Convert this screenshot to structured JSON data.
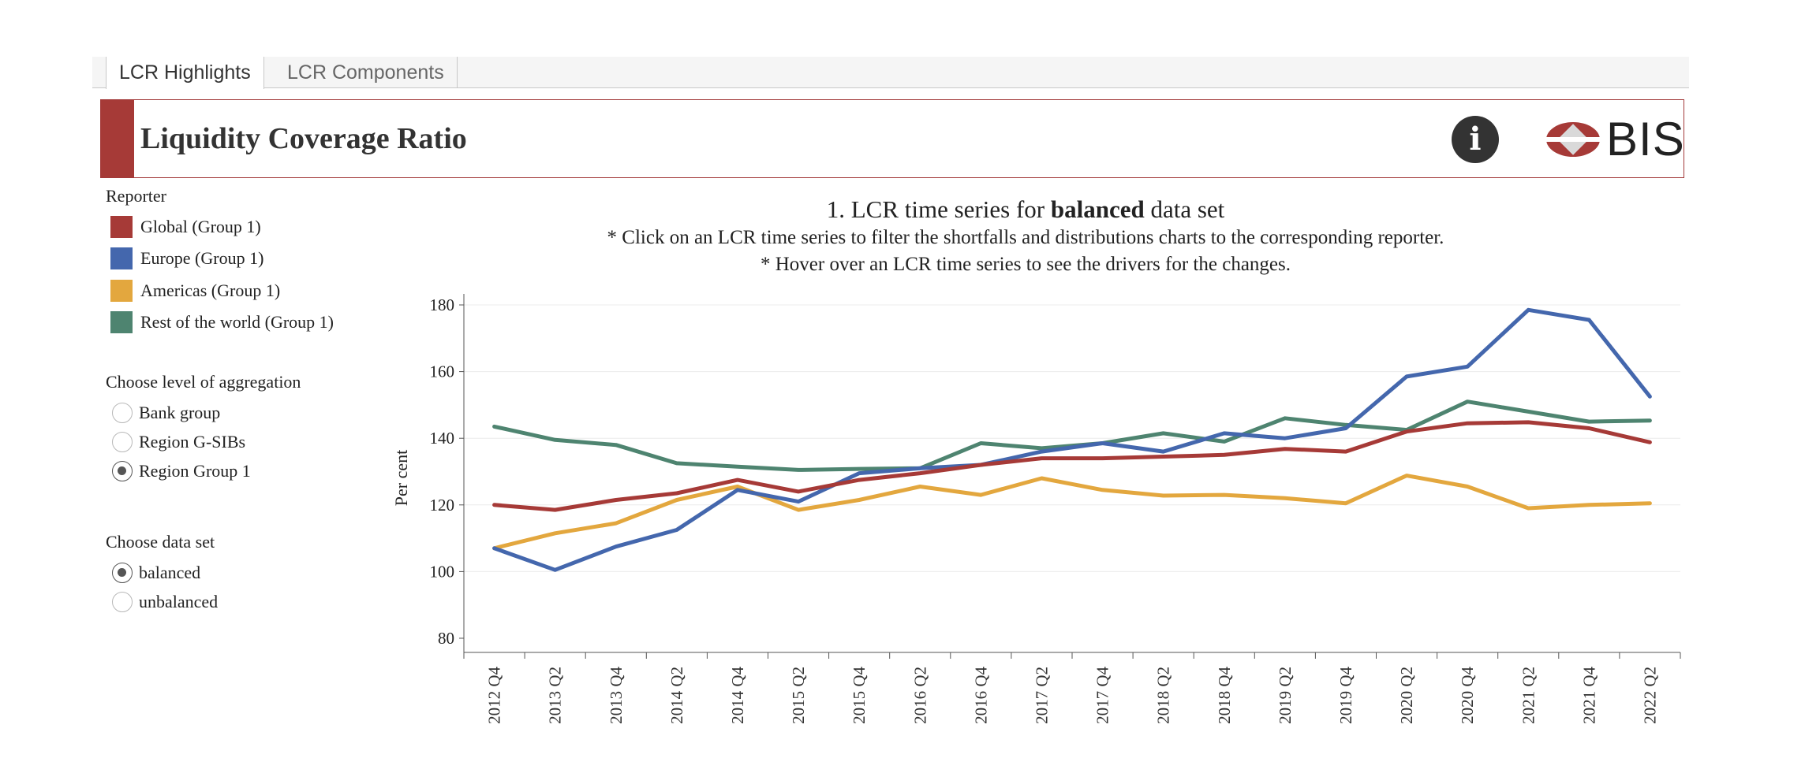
{
  "tabs": [
    {
      "label": "LCR Highlights",
      "active": true
    },
    {
      "label": "LCR Components",
      "active": false
    }
  ],
  "header": {
    "title": "Liquidity Coverage Ratio",
    "info_icon": "info-icon",
    "logo_text": "BIS",
    "accent_color": "#a63a37"
  },
  "reporter": {
    "label": "Reporter",
    "items": [
      {
        "label": "Global (Group 1)",
        "color": "#a63a37"
      },
      {
        "label": "Europe (Group 1)",
        "color": "#4467ad"
      },
      {
        "label": "Americas (Group 1)",
        "color": "#e3a73e"
      },
      {
        "label": "Rest of the world (Group 1)",
        "color": "#4e8470"
      }
    ]
  },
  "aggregation": {
    "label": "Choose level of aggregation",
    "options": [
      {
        "label": "Bank group",
        "checked": false
      },
      {
        "label": "Region G-SIBs",
        "checked": false
      },
      {
        "label": "Region Group 1",
        "checked": true
      }
    ]
  },
  "dataset": {
    "label": "Choose data set",
    "options": [
      {
        "label": "balanced",
        "checked": true
      },
      {
        "label": "unbalanced",
        "checked": false
      }
    ]
  },
  "chart_title": {
    "prefix": "1. LCR time series for ",
    "bold": "balanced",
    "suffix": " data set",
    "note1": "* Click on an LCR time series to filter the shortfalls and distributions charts to the corresponding reporter.",
    "note2": "* Hover over an LCR time series to see the drivers for the changes."
  },
  "chart_data": {
    "type": "line",
    "ylabel": "Per cent",
    "xlabel": "",
    "ylim": [
      80,
      180
    ],
    "yticks": [
      80,
      100,
      120,
      140,
      160,
      180
    ],
    "grid": true,
    "categories": [
      "2012 Q4",
      "2013 Q2",
      "2013 Q4",
      "2014 Q2",
      "2014 Q4",
      "2015 Q2",
      "2015 Q4",
      "2016 Q2",
      "2016 Q4",
      "2017 Q2",
      "2017 Q4",
      "2018 Q2",
      "2018 Q4",
      "2019 Q2",
      "2019 Q4",
      "2020 Q2",
      "2020 Q4",
      "2021 Q2",
      "2021 Q4",
      "2022 Q2"
    ],
    "series": [
      {
        "name": "Rest of the world (Group 1)",
        "color": "#4e8470",
        "values": [
          143.5,
          139.5,
          138,
          132.5,
          131.5,
          130.5,
          130.8,
          131,
          138.5,
          137,
          138.5,
          141.5,
          139,
          146,
          144,
          142.5,
          151,
          148,
          145,
          145.3
        ]
      },
      {
        "name": "Americas (Group 1)",
        "color": "#e3a73e",
        "values": [
          107,
          111.5,
          114.5,
          121.5,
          125.5,
          118.5,
          121.5,
          125.5,
          123,
          128,
          124.5,
          122.8,
          123,
          122,
          120.5,
          128.8,
          125.5,
          119,
          120,
          120.5
        ]
      },
      {
        "name": "Europe (Group 1)",
        "color": "#4467ad",
        "values": [
          107,
          100.5,
          107.5,
          112.5,
          124.5,
          121,
          129.5,
          131,
          132,
          136,
          138.5,
          136,
          141.5,
          140,
          143,
          158.5,
          161.5,
          178.5,
          175.5,
          152.5
        ]
      },
      {
        "name": "Global (Group 1)",
        "color": "#a63a37",
        "values": [
          120,
          118.5,
          121.5,
          123.5,
          127.5,
          124,
          127.5,
          129.5,
          132,
          134,
          134,
          134.5,
          135,
          136.8,
          136,
          142,
          144.5,
          144.8,
          143,
          138.8
        ]
      }
    ]
  }
}
